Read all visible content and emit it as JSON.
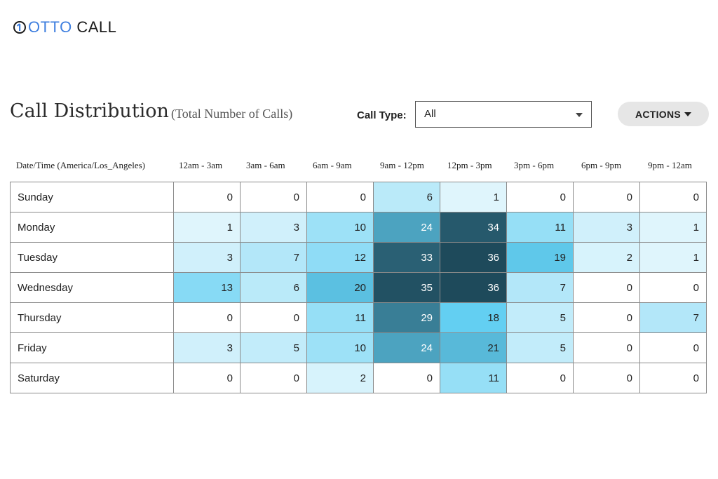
{
  "logo": {
    "part1": "OTTO",
    "part2": "CALL"
  },
  "title": "Call Distribution",
  "subtitle": "(Total Number of Calls)",
  "call_type": {
    "label": "Call Type:",
    "value": "All"
  },
  "actions_label": "ACTIONS",
  "columns": [
    "Date/Time (America/Los_Angeles)",
    "12am - 3am",
    "3am - 6am",
    "6am - 9am",
    "9am - 12pm",
    "12pm - 3pm",
    "3pm - 6pm",
    "6pm - 9pm",
    "9pm - 12am"
  ],
  "rows": [
    {
      "day": "Sunday",
      "values": [
        0,
        0,
        0,
        6,
        1,
        0,
        0,
        0
      ]
    },
    {
      "day": "Monday",
      "values": [
        1,
        3,
        10,
        24,
        34,
        11,
        3,
        1
      ]
    },
    {
      "day": "Tuesday",
      "values": [
        3,
        7,
        12,
        33,
        36,
        19,
        2,
        1
      ]
    },
    {
      "day": "Wednesday",
      "values": [
        13,
        6,
        20,
        35,
        36,
        7,
        0,
        0
      ]
    },
    {
      "day": "Thursday",
      "values": [
        0,
        0,
        11,
        29,
        18,
        5,
        0,
        7
      ]
    },
    {
      "day": "Friday",
      "values": [
        3,
        5,
        10,
        24,
        21,
        5,
        0,
        0
      ]
    },
    {
      "day": "Saturday",
      "values": [
        0,
        0,
        2,
        0,
        11,
        0,
        0,
        0
      ]
    }
  ],
  "colors": {
    "logo_accent": "#3f7fdf",
    "heat_low": "#e6f7fd",
    "heat_mid": "#63cff2",
    "heat_high": "#1e4a5b"
  }
}
